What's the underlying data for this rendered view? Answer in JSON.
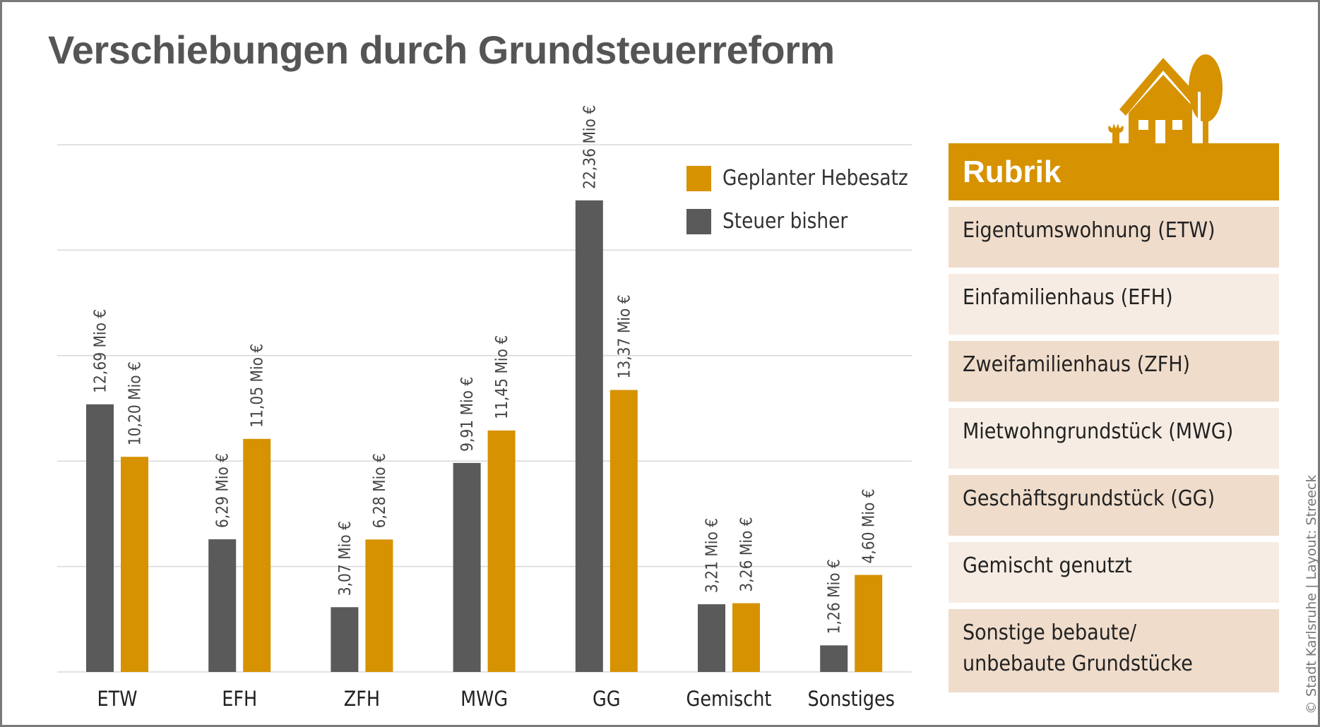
{
  "title": "Verschiebungen durch Grundsteuerreform",
  "colors": {
    "orange": "#d69200",
    "gray": "#5a5a5a",
    "grid": "#d8d8d8"
  },
  "legend": [
    {
      "label": "Geplanter Hebesatz",
      "color": "#d69200"
    },
    {
      "label": "Steuer bisher",
      "color": "#5a5a5a"
    }
  ],
  "chart_data": {
    "type": "bar",
    "title": "Verschiebungen durch Grundsteuerreform",
    "categories": [
      "ETW",
      "EFH",
      "ZFH",
      "MWG",
      "GG",
      "Gemischt",
      "Sonstiges"
    ],
    "series": [
      {
        "name": "Steuer bisher",
        "values": [
          12.69,
          6.29,
          3.07,
          9.91,
          22.36,
          3.21,
          1.26
        ],
        "labels": [
          "12,69 Mio €",
          "6,29 Mio €",
          "3,07 Mio €",
          "9,91 Mio €",
          "22,36 Mio €",
          "3,21 Mio €",
          "1,26 Mio €"
        ]
      },
      {
        "name": "Geplanter Hebesatz",
        "values": [
          10.2,
          11.05,
          6.28,
          11.45,
          13.37,
          3.26,
          4.6
        ],
        "labels": [
          "10,20 Mio €",
          "11,05 Mio €",
          "6,28 Mio €",
          "11,45 Mio €",
          "13,37 Mio €",
          "3,26 Mio €",
          "4,60 Mio €"
        ]
      }
    ],
    "unit": "Mio €",
    "ylim": [
      0,
      25
    ],
    "gridlines": [
      0,
      5,
      10,
      15,
      20,
      25
    ],
    "grid": true,
    "legend_position": "top-right"
  },
  "panel": {
    "heading": "Rubrik",
    "rows": [
      "Eigentumswohnung (ETW)",
      "Einfamilienhaus (EFH)",
      "Zweifamilienhaus (ZFH)",
      "Mietwohngrundstück (MWG)",
      "Geschäftsgrundstück (GG)",
      "Gemischt genutzt",
      "Sonstige bebaute/",
      "unbebaute Grundstücke"
    ]
  },
  "credit": "© Stadt Karlsruhe | Layout: Streeck"
}
